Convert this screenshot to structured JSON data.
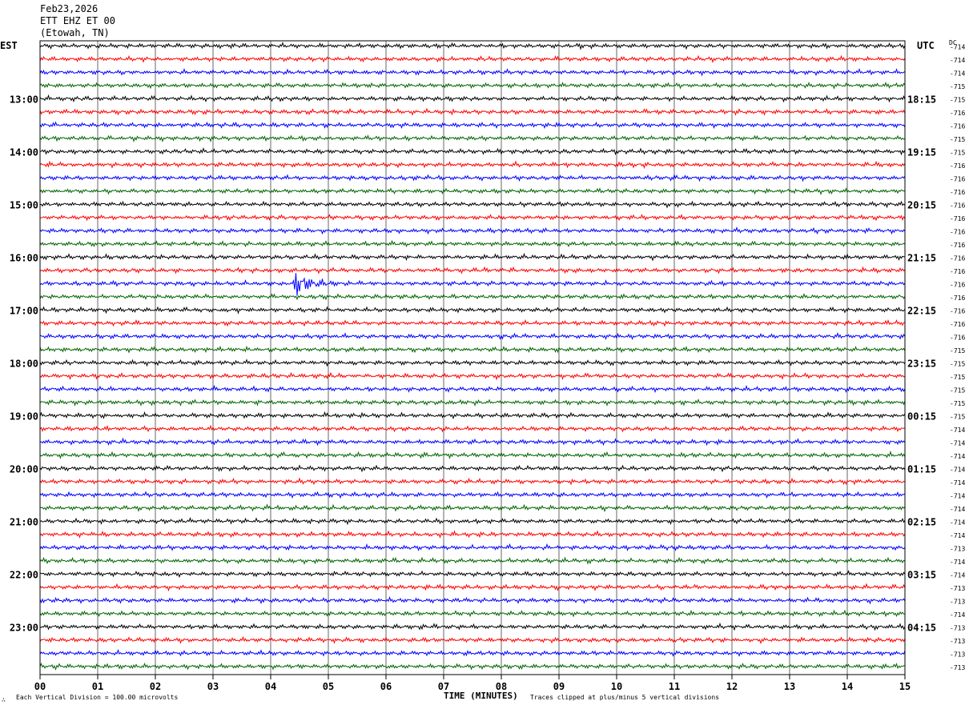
{
  "header": {
    "date": "Feb23,2026",
    "station": "ETT EHZ ET 00",
    "location": "(Etowah, TN)"
  },
  "left_zone": "EST",
  "right_zone": "UTC",
  "dc_label": "DC",
  "footer": {
    "scale_note": "Each Vertical Division =  100.00 microvolts",
    "xaxis_title": "TIME (MINUTES)",
    "clip_note": "Traces clipped at plus/minus 5 vertical divisions"
  },
  "chart_data": {
    "type": "line",
    "subtype": "helicorder",
    "x_ticks": [
      "00",
      "01",
      "02",
      "03",
      "04",
      "05",
      "06",
      "07",
      "08",
      "09",
      "10",
      "11",
      "12",
      "13",
      "14",
      "15"
    ],
    "x_range": [
      0,
      15
    ],
    "xlabel": "TIME (MINUTES)",
    "trace_colors": [
      "#000000",
      "#ff0000",
      "#0000ff",
      "#006400"
    ],
    "grid": true,
    "hours_left": [
      "13:00",
      "14:00",
      "15:00",
      "16:00",
      "17:00",
      "18:00",
      "19:00",
      "20:00",
      "21:00",
      "22:00",
      "23:00"
    ],
    "hours_right": [
      "18:15",
      "19:15",
      "20:15",
      "21:15",
      "22:15",
      "23:15",
      "00:15",
      "01:15",
      "02:15",
      "03:15",
      "04:15"
    ],
    "dc_offsets": [
      "-714",
      "-714",
      "-714",
      "-715",
      "-715",
      "-716",
      "-716",
      "-715",
      "-715",
      "-716",
      "-716",
      "-716",
      "-716",
      "-716",
      "-716",
      "-716",
      "-716",
      "-716",
      "-716",
      "-716",
      "-716",
      "-716",
      "-716",
      "-715",
      "-715",
      "-715",
      "-715",
      "-715",
      "-715",
      "-714",
      "-714",
      "-714",
      "-714",
      "-714",
      "-714",
      "-714",
      "-714",
      "-714",
      "-713",
      "-714",
      "-714",
      "-713",
      "-713",
      "-714",
      "-713",
      "-713",
      "-713",
      "-713"
    ],
    "events": [
      {
        "trace": 18,
        "minute_start": 4.4,
        "minute_end": 5.2,
        "amplitude": 2.6
      }
    ]
  }
}
